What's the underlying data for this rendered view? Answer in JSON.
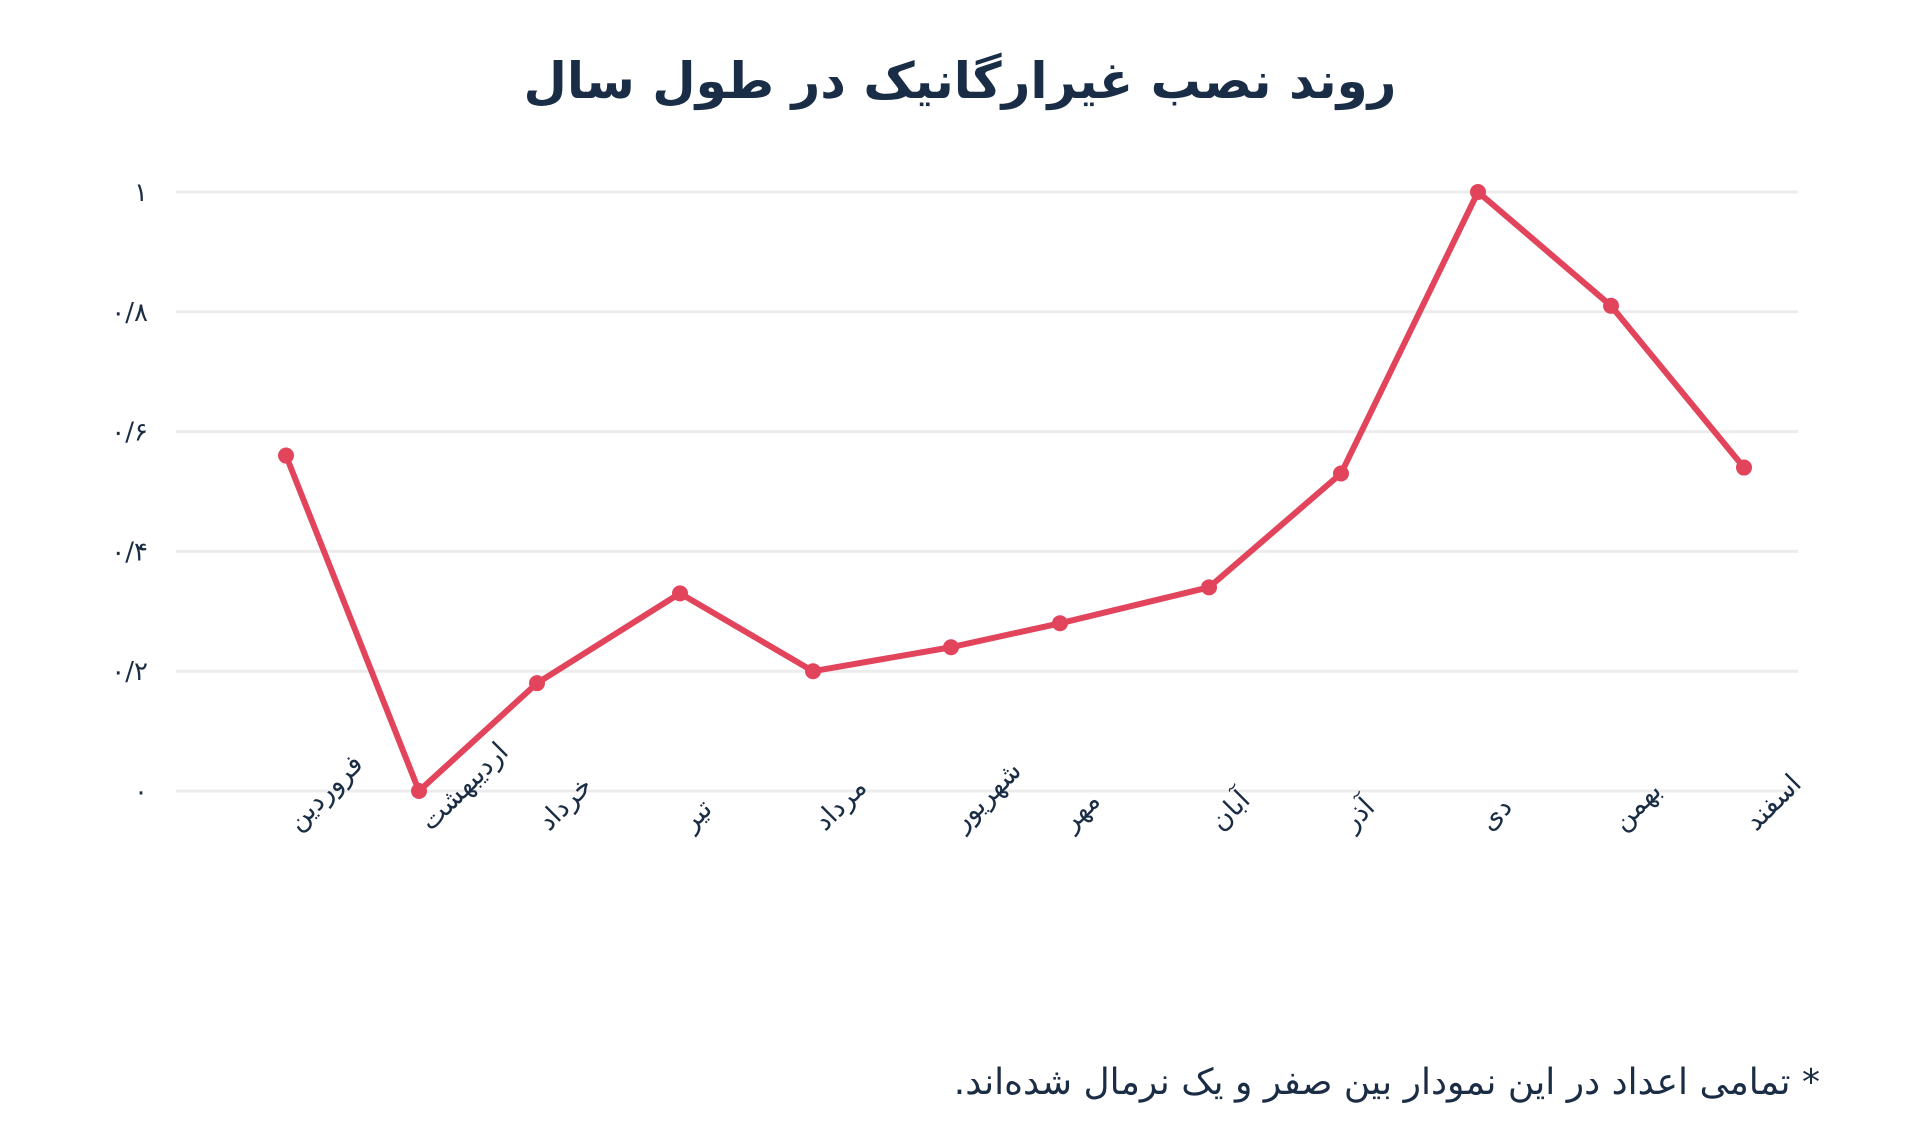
{
  "header": {
    "title": "روند نصب غیرارگانیک در طول سال"
  },
  "footnote": "* تمامی اعداد در این نمودار بین صفر و یک نرمال شده‌اند.",
  "colors": {
    "line": "#e2445c",
    "grid": "#ececec",
    "text": "#1b2d45"
  },
  "chart_data": {
    "type": "line",
    "title": "روند نصب غیرارگانیک در طول سال",
    "xlabel": "",
    "ylabel": "",
    "ylim": [
      0,
      1
    ],
    "grid": true,
    "legend": "none",
    "y_ticks": [
      {
        "value": 0,
        "label": "۰"
      },
      {
        "value": 0.2,
        "label": "۰/۲"
      },
      {
        "value": 0.4,
        "label": "۰/۴"
      },
      {
        "value": 0.6,
        "label": "۰/۶"
      },
      {
        "value": 0.8,
        "label": "۰/۸"
      },
      {
        "value": 1,
        "label": "۱"
      }
    ],
    "categories": [
      "فروردین",
      "اردیبهشت",
      "خرداد",
      "تیر",
      "مرداد",
      "شهریور",
      "مهر",
      "آبان",
      "آذر",
      "دی",
      "بهمن",
      "اسفند"
    ],
    "series": [
      {
        "name": "نصب غیرارگانیک",
        "values": [
          0.56,
          0.0,
          0.18,
          0.33,
          0.2,
          0.24,
          0.28,
          0.34,
          0.53,
          1.0,
          0.81,
          0.54
        ]
      }
    ],
    "annotations": [
      "* تمامی اعداد در این نمودار بین صفر و یک نرمال شده‌اند."
    ]
  }
}
